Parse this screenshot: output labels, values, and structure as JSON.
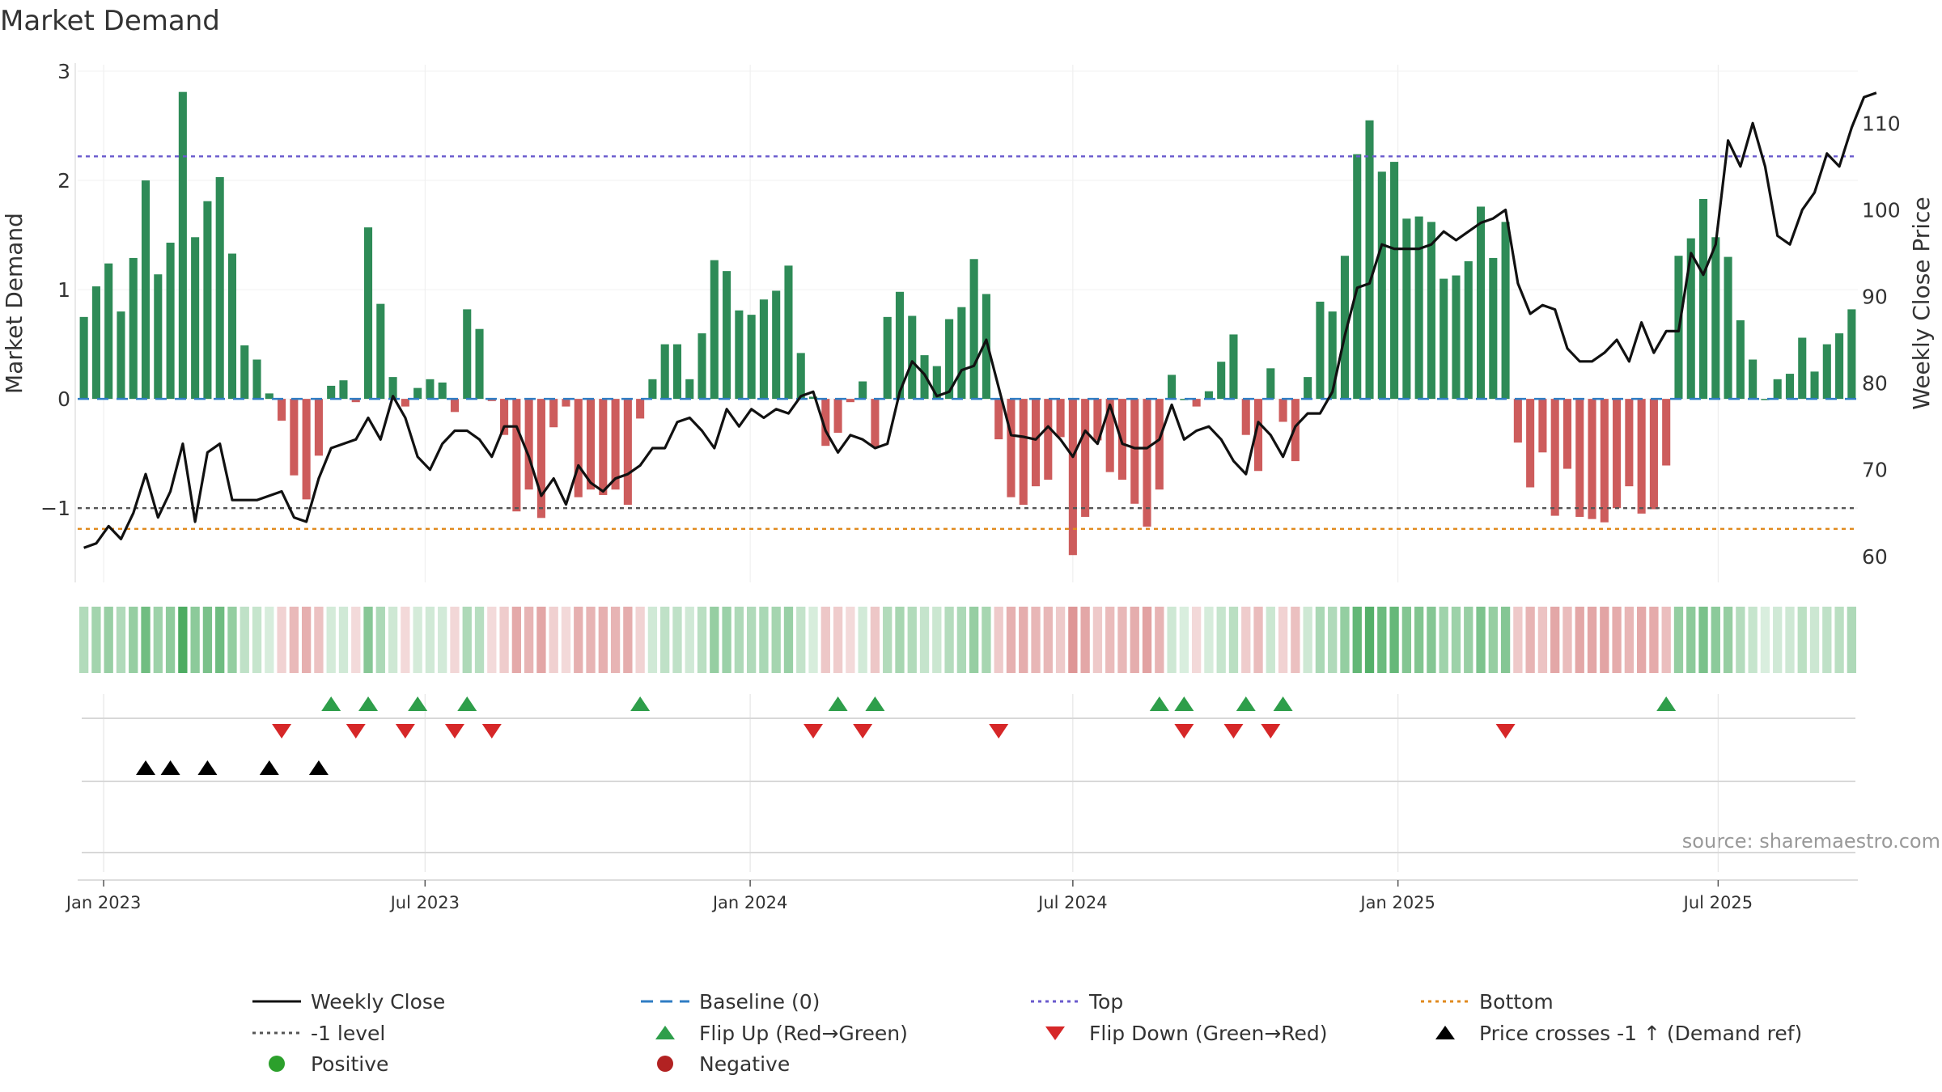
{
  "chart_data": {
    "type": "bar",
    "title": "Market Demand",
    "ylabel": "Market Demand",
    "y2label": "Weekly Close Price",
    "source": "source: sharemaestro.com",
    "ylim": [
      -1.68,
      3.0
    ],
    "y2lim": [
      57,
      116
    ],
    "yticks": [
      {
        "value": 3,
        "label": "3"
      },
      {
        "value": 2,
        "label": "2"
      },
      {
        "value": 1,
        "label": "1"
      },
      {
        "value": 0,
        "label": "0"
      },
      {
        "value": -1,
        "label": "−1"
      }
    ],
    "y2ticks": [
      {
        "value": 110,
        "label": "110"
      },
      {
        "value": 100,
        "label": "100"
      },
      {
        "value": 90,
        "label": "90"
      },
      {
        "value": 80,
        "label": "80"
      },
      {
        "value": 70,
        "label": "70"
      },
      {
        "value": 60,
        "label": "60"
      }
    ],
    "xticks": [
      {
        "week": 1.6,
        "label": "Jan 2023"
      },
      {
        "week": 27.6,
        "label": "Jul 2023"
      },
      {
        "week": 53.9,
        "label": "Jan 2024"
      },
      {
        "week": 80.0,
        "label": "Jul 2024"
      },
      {
        "week": 106.3,
        "label": "Jan 2025"
      },
      {
        "week": 132.2,
        "label": "Jul 2025"
      }
    ],
    "top_level": 2.22,
    "minus1_level": -1.0,
    "bottom_level": -1.19,
    "demand": [
      0.75,
      1.03,
      1.24,
      0.8,
      1.29,
      2.0,
      1.14,
      1.43,
      2.81,
      1.48,
      1.81,
      2.03,
      1.33,
      0.49,
      0.36,
      0.05,
      -0.2,
      -0.7,
      -0.92,
      -0.52,
      0.12,
      0.17,
      -0.03,
      1.57,
      0.87,
      0.2,
      -0.07,
      0.1,
      0.18,
      0.15,
      -0.12,
      0.82,
      0.64,
      -0.02,
      -0.33,
      -1.03,
      -0.83,
      -1.09,
      -0.26,
      -0.07,
      -0.9,
      -0.83,
      -0.88,
      -0.83,
      -0.97,
      -0.18,
      0.18,
      0.5,
      0.5,
      0.18,
      0.6,
      1.27,
      1.17,
      0.81,
      0.77,
      0.91,
      0.99,
      1.22,
      0.42,
      0.02,
      -0.43,
      -0.31,
      -0.03,
      0.16,
      -0.44,
      0.75,
      0.98,
      0.76,
      0.4,
      0.3,
      0.73,
      0.84,
      1.28,
      0.96,
      -0.37,
      -0.9,
      -0.97,
      -0.8,
      -0.74,
      -0.35,
      -1.43,
      -1.08,
      -0.38,
      -0.67,
      -0.74,
      -0.96,
      -1.17,
      -0.83,
      0.22,
      0.0,
      -0.07,
      0.07,
      0.34,
      0.59,
      -0.33,
      -0.66,
      0.28,
      -0.21,
      -0.57,
      0.2,
      0.89,
      0.8,
      1.31,
      2.24,
      2.55,
      2.08,
      2.17,
      1.65,
      1.67,
      1.62,
      1.1,
      1.13,
      1.26,
      1.76,
      1.29,
      1.62,
      -0.4,
      -0.81,
      -0.49,
      -1.07,
      -0.64,
      -1.08,
      -1.1,
      -1.13,
      -1.0,
      -0.8,
      -1.05,
      -1.01,
      -0.61,
      1.31,
      1.47,
      1.83,
      1.48,
      1.3,
      0.72,
      0.36,
      0.0,
      0.18,
      0.23,
      0.56,
      0.25,
      0.5,
      0.6,
      0.82
    ],
    "close": [
      61.0,
      61.5,
      63.5,
      62.0,
      65.0,
      69.5,
      64.5,
      67.5,
      73.0,
      64.0,
      72.0,
      73.0,
      66.5,
      66.5,
      66.5,
      67.0,
      67.5,
      64.5,
      64.0,
      69.0,
      72.5,
      73.0,
      73.5,
      76.0,
      73.5,
      78.5,
      76.0,
      71.5,
      70.0,
      73.0,
      74.5,
      74.5,
      73.5,
      71.5,
      75.0,
      75.0,
      71.5,
      67.0,
      69.0,
      66.0,
      70.5,
      68.5,
      67.5,
      69.0,
      69.5,
      70.5,
      72.5,
      72.5,
      75.5,
      76.0,
      74.5,
      72.5,
      77.0,
      75.0,
      77.0,
      76.0,
      77.0,
      76.5,
      78.5,
      79.0,
      74.5,
      72.0,
      74.0,
      73.5,
      72.5,
      73.0,
      79.0,
      82.5,
      81.0,
      78.5,
      79.0,
      81.5,
      82.0,
      85.0,
      79.5,
      74.0,
      73.8,
      73.5,
      75.0,
      73.5,
      71.5,
      74.5,
      73.0,
      77.5,
      73.0,
      72.5,
      72.5,
      73.5,
      77.5,
      73.5,
      74.5,
      75.0,
      73.5,
      71.0,
      69.5,
      75.5,
      74.0,
      71.5,
      75.0,
      76.5,
      76.5,
      79.0,
      85.5,
      91.0,
      91.5,
      96.0,
      95.5,
      95.5,
      95.5,
      96.0,
      97.5,
      96.5,
      97.5,
      98.5,
      99.0,
      100.0,
      91.5,
      88.0,
      89.0,
      88.5,
      84.0,
      82.5,
      82.5,
      83.5,
      85.0,
      82.5,
      87.0,
      83.5,
      86.0,
      86.0,
      95.0,
      92.5,
      96.0,
      108.0,
      105.0,
      110.0,
      105.0,
      97.0,
      96.0,
      100.0,
      102.0,
      106.5,
      105.0,
      109.5,
      113.0,
      113.5
    ],
    "flip_up_weeks": [
      20,
      23,
      27,
      31,
      45,
      61,
      64,
      87,
      89,
      94,
      97,
      128
    ],
    "flip_down_weeks": [
      16,
      22,
      26,
      30,
      33,
      59,
      63,
      74,
      89,
      93,
      96,
      115
    ],
    "price_cross_weeks": [
      5,
      7,
      10,
      15,
      19
    ],
    "legend": [
      {
        "label": "Weekly Close",
        "symbol": "line",
        "color": "#111111"
      },
      {
        "label": "Baseline (0)",
        "symbol": "dash",
        "color": "#2f7dc4"
      },
      {
        "label": "Top",
        "symbol": "dot",
        "color": "#6a5acd"
      },
      {
        "label": "Bottom",
        "symbol": "dot",
        "color": "#e08a1e"
      },
      {
        "label": "-1 level",
        "symbol": "dot",
        "color": "#555555"
      },
      {
        "label": "Flip Up (Red→Green)",
        "symbol": "tri-up",
        "color": "#2e9e4a"
      },
      {
        "label": "Flip Down (Green→Red)",
        "symbol": "tri-down",
        "color": "#d62728"
      },
      {
        "label": "Price crosses -1 ↑ (Demand ref)",
        "symbol": "tri-up",
        "color": "#000000"
      },
      {
        "label": "Positive",
        "symbol": "circle",
        "color": "#2ca02c"
      },
      {
        "label": "Negative",
        "symbol": "circle",
        "color": "#b22222"
      }
    ],
    "colors": {
      "positive_bar": "#2e8b57",
      "negative_bar": "#cd5c5c",
      "close_line": "#111111",
      "baseline": "#2f7dc4",
      "top": "#6a5acd",
      "bottom": "#e08a1e",
      "minus1": "#555555",
      "flip_up": "#2e9e4a",
      "flip_down": "#d62728",
      "price_cross": "#000000",
      "heat_positive": "#43a85a",
      "heat_negative": "#c85050"
    }
  }
}
